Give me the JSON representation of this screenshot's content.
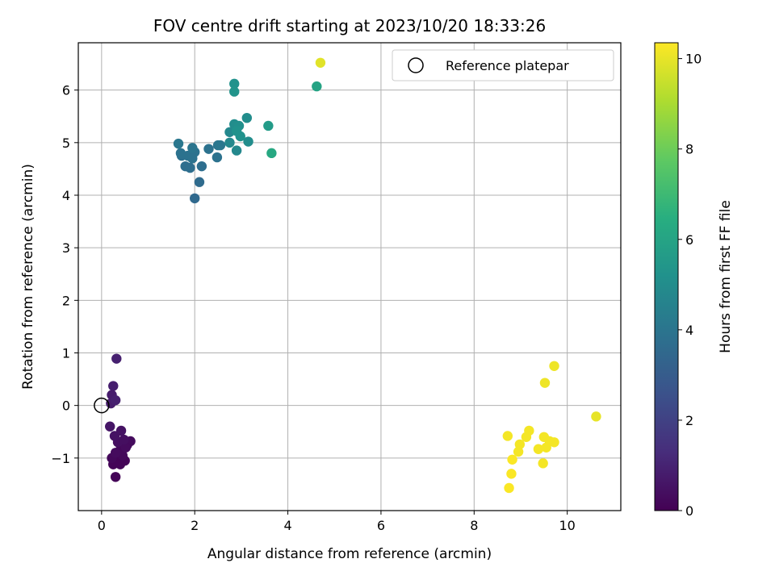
{
  "chart_data": {
    "type": "scatter",
    "title": "FOV centre drift starting at 2023/10/20 18:33:26",
    "xlabel": "Angular distance from reference (arcmin)",
    "ylabel": "Rotation from reference (arcmin)",
    "xlim": [
      -0.5,
      11.15
    ],
    "ylim": [
      -2.0,
      6.9
    ],
    "xticks": [
      0,
      2,
      4,
      6,
      8,
      10
    ],
    "xtick_labels": [
      "0",
      "2",
      "4",
      "6",
      "8",
      "10"
    ],
    "yticks": [
      -1,
      0,
      1,
      2,
      3,
      4,
      5,
      6
    ],
    "ytick_labels": [
      "−1",
      "0",
      "1",
      "2",
      "3",
      "4",
      "5",
      "6"
    ],
    "grid": true,
    "legend": {
      "position": "top-right",
      "entries": [
        "Reference platepar"
      ]
    },
    "reference_point": {
      "x": 0,
      "y": 0
    },
    "colorbar": {
      "label": "Hours from first FF file",
      "colormap": "viridis",
      "range": [
        0,
        10.35
      ],
      "ticks": [
        0,
        2,
        4,
        6,
        8,
        10
      ],
      "tick_labels": [
        "0",
        "2",
        "4",
        "6",
        "8",
        "10"
      ]
    },
    "points": [
      {
        "x": 0.32,
        "y": 0.89,
        "c": 0.9
      },
      {
        "x": 0.25,
        "y": 0.37,
        "c": 0.85
      },
      {
        "x": 0.22,
        "y": 0.2,
        "c": 0.8
      },
      {
        "x": 0.3,
        "y": 0.1,
        "c": 0.9
      },
      {
        "x": 0.2,
        "y": 0.04,
        "c": 0.8
      },
      {
        "x": 0.18,
        "y": -0.4,
        "c": 0.6
      },
      {
        "x": 0.28,
        "y": -0.58,
        "c": 0.5
      },
      {
        "x": 0.42,
        "y": -0.48,
        "c": 0.5
      },
      {
        "x": 0.35,
        "y": -0.7,
        "c": 0.4
      },
      {
        "x": 0.48,
        "y": -0.65,
        "c": 0.4
      },
      {
        "x": 0.55,
        "y": -0.75,
        "c": 0.3
      },
      {
        "x": 0.62,
        "y": -0.68,
        "c": 0.3
      },
      {
        "x": 0.52,
        "y": -0.8,
        "c": 0.3
      },
      {
        "x": 0.4,
        "y": -0.85,
        "c": 0.2
      },
      {
        "x": 0.3,
        "y": -0.9,
        "c": 0.3
      },
      {
        "x": 0.45,
        "y": -0.95,
        "c": 0.2
      },
      {
        "x": 0.22,
        "y": -1.0,
        "c": 0.2
      },
      {
        "x": 0.35,
        "y": -1.05,
        "c": 0.1
      },
      {
        "x": 0.5,
        "y": -1.05,
        "c": 0.1
      },
      {
        "x": 0.25,
        "y": -1.12,
        "c": 0.1
      },
      {
        "x": 0.4,
        "y": -1.12,
        "c": 0.1
      },
      {
        "x": 0.3,
        "y": -1.36,
        "c": 0.1
      },
      {
        "x": 1.65,
        "y": 4.98,
        "c": 4.1
      },
      {
        "x": 1.7,
        "y": 4.8,
        "c": 3.9
      },
      {
        "x": 1.72,
        "y": 4.75,
        "c": 3.8
      },
      {
        "x": 1.85,
        "y": 4.75,
        "c": 3.9
      },
      {
        "x": 1.95,
        "y": 4.9,
        "c": 4.0
      },
      {
        "x": 2.0,
        "y": 4.82,
        "c": 3.9
      },
      {
        "x": 1.95,
        "y": 4.7,
        "c": 3.9
      },
      {
        "x": 1.8,
        "y": 4.55,
        "c": 3.7
      },
      {
        "x": 1.9,
        "y": 4.52,
        "c": 3.7
      },
      {
        "x": 2.15,
        "y": 4.55,
        "c": 3.7
      },
      {
        "x": 2.1,
        "y": 4.25,
        "c": 3.6
      },
      {
        "x": 2.0,
        "y": 3.94,
        "c": 3.5
      },
      {
        "x": 2.3,
        "y": 4.88,
        "c": 3.9
      },
      {
        "x": 2.5,
        "y": 4.95,
        "c": 4.0
      },
      {
        "x": 2.48,
        "y": 4.72,
        "c": 3.9
      },
      {
        "x": 2.55,
        "y": 4.95,
        "c": 4.1
      },
      {
        "x": 2.75,
        "y": 5.0,
        "c": 4.8
      },
      {
        "x": 2.75,
        "y": 5.2,
        "c": 4.8
      },
      {
        "x": 2.85,
        "y": 5.35,
        "c": 5.0
      },
      {
        "x": 2.95,
        "y": 5.32,
        "c": 5.1
      },
      {
        "x": 2.9,
        "y": 5.22,
        "c": 5.2
      },
      {
        "x": 2.98,
        "y": 5.12,
        "c": 5.2
      },
      {
        "x": 2.9,
        "y": 4.85,
        "c": 4.8
      },
      {
        "x": 3.12,
        "y": 5.47,
        "c": 5.0
      },
      {
        "x": 3.15,
        "y": 5.02,
        "c": 5.0
      },
      {
        "x": 2.85,
        "y": 6.12,
        "c": 5.2
      },
      {
        "x": 2.85,
        "y": 5.97,
        "c": 5.3
      },
      {
        "x": 3.58,
        "y": 5.32,
        "c": 5.6
      },
      {
        "x": 3.65,
        "y": 4.8,
        "c": 6.2
      },
      {
        "x": 4.62,
        "y": 6.07,
        "c": 6.0
      },
      {
        "x": 4.7,
        "y": 6.52,
        "c": 9.9
      },
      {
        "x": 9.72,
        "y": 0.75,
        "c": 10.1
      },
      {
        "x": 9.52,
        "y": 0.43,
        "c": 10.1
      },
      {
        "x": 10.62,
        "y": -0.21,
        "c": 10.0
      },
      {
        "x": 8.72,
        "y": -0.58,
        "c": 10.2
      },
      {
        "x": 9.18,
        "y": -0.48,
        "c": 10.2
      },
      {
        "x": 9.12,
        "y": -0.6,
        "c": 10.2
      },
      {
        "x": 9.5,
        "y": -0.6,
        "c": 10.2
      },
      {
        "x": 8.98,
        "y": -0.74,
        "c": 10.2
      },
      {
        "x": 9.62,
        "y": -0.68,
        "c": 10.2
      },
      {
        "x": 9.72,
        "y": -0.7,
        "c": 10.2
      },
      {
        "x": 9.38,
        "y": -0.83,
        "c": 10.2
      },
      {
        "x": 9.55,
        "y": -0.8,
        "c": 10.2
      },
      {
        "x": 8.95,
        "y": -0.88,
        "c": 10.2
      },
      {
        "x": 8.82,
        "y": -1.03,
        "c": 10.3
      },
      {
        "x": 9.48,
        "y": -1.1,
        "c": 10.2
      },
      {
        "x": 8.8,
        "y": -1.3,
        "c": 10.3
      },
      {
        "x": 8.75,
        "y": -1.57,
        "c": 10.3
      }
    ]
  }
}
